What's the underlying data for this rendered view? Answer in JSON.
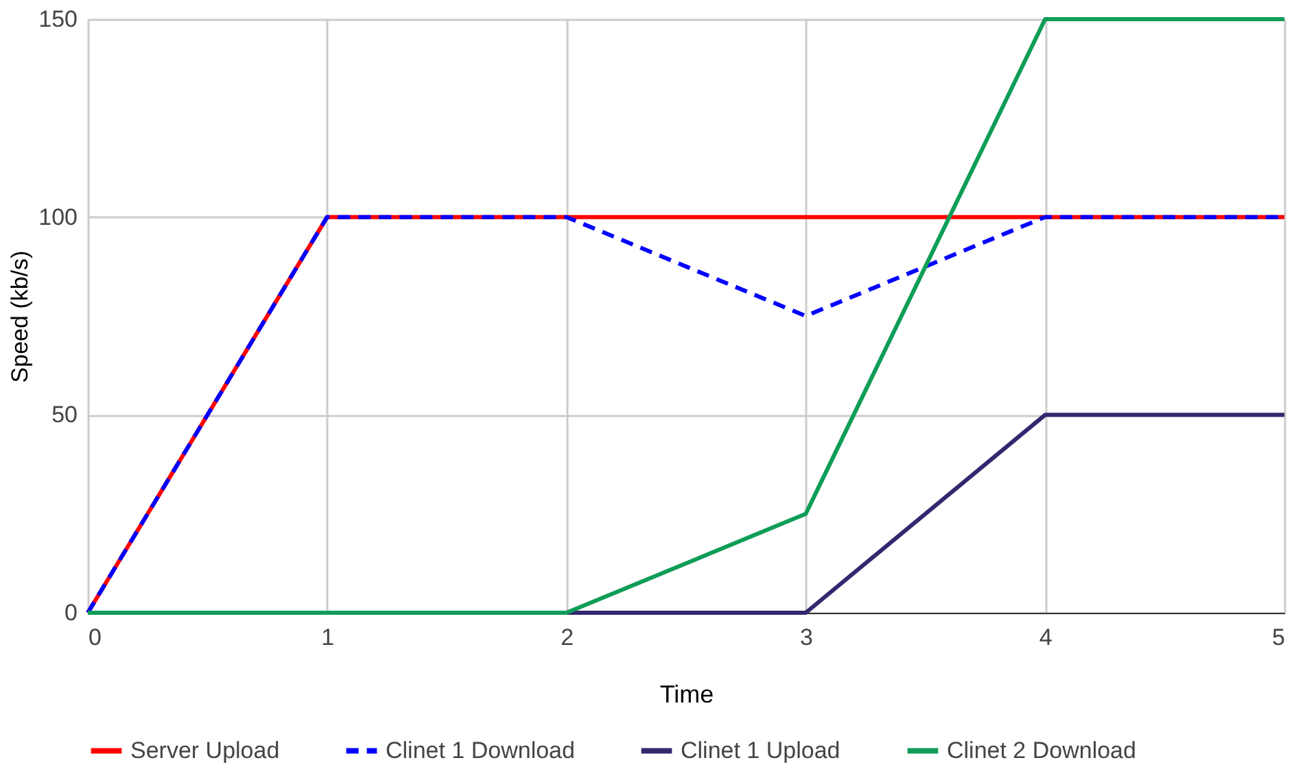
{
  "chart_data": {
    "type": "line",
    "xlabel": "Time",
    "ylabel": "Speed (kb/s)",
    "x": [
      0,
      1,
      2,
      3,
      4,
      5
    ],
    "series": [
      {
        "name": "Server Upload",
        "color": "#ff0000",
        "line_style": "solid",
        "values": [
          0,
          100,
          100,
          100,
          100,
          100
        ]
      },
      {
        "name": "Clinet 1 Download",
        "color": "#0000ff",
        "line_style": "dashed",
        "values": [
          0,
          100,
          100,
          75,
          100,
          100
        ]
      },
      {
        "name": "Clinet 1 Upload",
        "color": "#35266f",
        "line_style": "solid",
        "values": [
          0,
          0,
          0,
          0,
          50,
          50
        ]
      },
      {
        "name": "Clinet 2 Download",
        "color": "#0f9d58",
        "line_style": "solid",
        "values": [
          0,
          0,
          0,
          25,
          150,
          150
        ]
      }
    ],
    "xlim": [
      0,
      5
    ],
    "xticks": [
      0,
      1,
      2,
      3,
      4,
      5
    ],
    "ylim": [
      0,
      150
    ],
    "yticks": [
      0,
      50,
      100,
      150
    ],
    "grid": true,
    "legend": "bottom"
  }
}
